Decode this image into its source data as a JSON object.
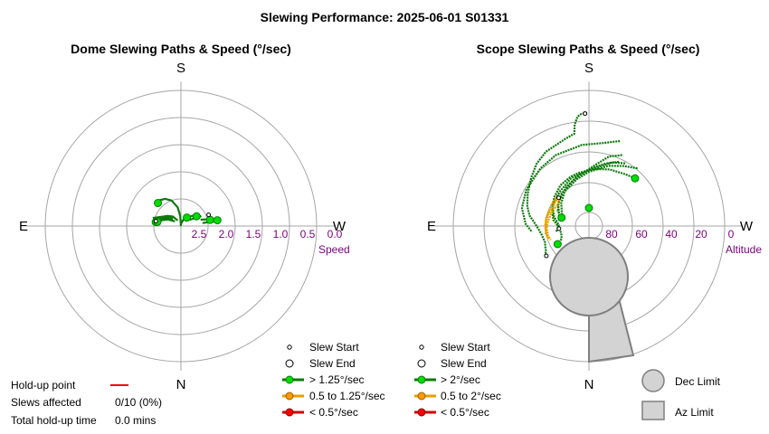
{
  "title": "Slewing Performance: 2025-06-01 S01331",
  "colors": {
    "grid": "#a6a6a6",
    "axis_label": "#7a007a",
    "fast": "#0a7a0a",
    "fast_marker": "#00dd00",
    "medium": "#e8a000",
    "medium_marker": "#ff9900",
    "slow": "#cc0000",
    "limit_fill": "#d3d3d3",
    "limit_stroke": "#7f7f7f",
    "holdup": "#ff0000"
  },
  "chart_data": [
    {
      "type": "scatter",
      "title": "Dome Slewing Paths & Speed (°/sec)",
      "radial_axis": {
        "label": "Speed",
        "tick_labels": [
          "2.5",
          "2.0",
          "1.5",
          "1.0",
          "0.5",
          "0.0"
        ],
        "range": [
          2.5,
          0.0
        ]
      },
      "compass": {
        "south": "S",
        "north": "N",
        "east": "E",
        "west": "W"
      },
      "grid": true,
      "legend": {
        "placement": "bottom-right",
        "entries": [
          "Slew Start",
          "Slew End",
          "> 1.25°/sec",
          "0.5 to 1.25°/sec",
          "< 0.5°/sec"
        ]
      },
      "series": [
        {
          "name": "> 1.25°/sec",
          "paths": [
            [
              [
                179,
                2.5
              ],
              [
                176,
                2.35
              ],
              [
                175,
                2.3
              ],
              [
                170,
                2.15
              ],
              [
                160,
                2.0
              ],
              [
                150,
                1.92
              ],
              [
                140,
                1.88
              ],
              [
                135,
                1.9
              ]
            ],
            [
              [
                150,
                2.38
              ],
              [
                140,
                2.28
              ],
              [
                125,
                2.18
              ],
              [
                112,
                2.08
              ],
              [
                104,
                2.04
              ]
            ],
            [
              [
                132,
                2.3
              ],
              [
                120,
                2.2
              ],
              [
                110,
                2.12
              ],
              [
                101,
                2.03
              ]
            ],
            [
              [
                128,
                2.36
              ],
              [
                116,
                2.22
              ],
              [
                106,
                2.12
              ],
              [
                100,
                2.06
              ]
            ],
            [
              [
                142,
                2.28
              ],
              [
                128,
                2.2
              ],
              [
                115,
                2.1
              ],
              [
                106,
                1.96
              ]
            ],
            [
              [
                118,
                2.24
              ],
              [
                108,
                2.14
              ],
              [
                102,
                2.06
              ]
            ],
            [
              [
                111,
                2.14
              ],
              [
                104,
                2.08
              ],
              [
                99,
                2.03
              ]
            ],
            [
              [
                170,
                2.48
              ],
              [
                180,
                2.46
              ],
              [
                200,
                2.38
              ],
              [
                215,
                2.31
              ]
            ],
            [
              [
                210,
                2.38
              ],
              [
                220,
                2.28
              ],
              [
                230,
                2.2
              ],
              [
                238,
                2.16
              ]
            ],
            [
              [
                235,
                2.3
              ],
              [
                240,
                2.2
              ],
              [
                244,
                2.08
              ]
            ],
            [
              [
                252,
                2.12
              ],
              [
                256,
                1.98
              ],
              [
                258,
                1.95
              ]
            ],
            [
              [
                262,
                2.1
              ],
              [
                262,
                1.9
              ],
              [
                261,
                1.82
              ]
            ],
            [
              [
                248,
                1.95
              ],
              [
                256,
                1.93
              ],
              [
                262,
                1.9
              ]
            ]
          ],
          "start_points": [
            [
              248,
              1.95
            ],
            [
              101,
              2.03
            ]
          ],
          "end_points": [
            [
              135,
              1.9
            ],
            [
              215,
              2.31
            ],
            [
              238,
              2.16
            ],
            [
              258,
              1.95
            ],
            [
              261,
              1.82
            ],
            [
              99,
              2.03
            ],
            [
              100,
              2.06
            ]
          ]
        }
      ]
    },
    {
      "type": "scatter",
      "title": "Scope Slewing Paths & Speed (°/sec)",
      "radial_axis": {
        "label": "Altitude",
        "tick_labels": [
          "80",
          "60",
          "40",
          "20",
          "0"
        ],
        "range": [
          90,
          0
        ]
      },
      "compass": {
        "south": "S",
        "north": "N",
        "east": "E",
        "west": "W"
      },
      "grid": true,
      "legend": {
        "placement": "bottom-right",
        "entries": [
          "Slew Start",
          "Slew End",
          "> 2°/sec",
          "0.5 to 2°/sec",
          "< 0.5°/sec"
        ]
      },
      "limit_legend": [
        "Dec Limit",
        "Az Limit"
      ],
      "series": [
        {
          "name": "> 2°/sec",
          "paths": [
            [
              [
                179,
                15.0
              ],
              [
                176,
                15.5
              ],
              [
                174,
                17.0
              ],
              [
                172,
                22.0
              ],
              [
                171,
                28.0
              ],
              [
                165,
                30.0
              ],
              [
                150,
                33.0
              ],
              [
                140,
                36.0
              ],
              [
                130,
                40.0
              ],
              [
                118,
                44.0
              ],
              [
                108,
                47.0
              ],
              [
                100,
                50.0
              ],
              [
                95,
                53.0
              ],
              [
                88,
                56.0
              ],
              [
                80,
                58.0
              ],
              [
                70,
                59.0
              ],
              [
                65,
                58.0
              ],
              [
                60,
                57.0
              ],
              [
                56,
                55.0
              ]
            ],
            [
              [
                224,
                46.0
              ],
              [
                215,
                48.0
              ],
              [
                200,
                50.0
              ],
              [
                185,
                52.0
              ],
              [
                170,
                54.0
              ],
              [
                160,
                55.0
              ],
              [
                145,
                57.0
              ],
              [
                130,
                60.0
              ],
              [
                115,
                63.0
              ],
              [
                100,
                66.0
              ],
              [
                88,
                70.0
              ],
              [
                75,
                71.0
              ],
              [
                65,
                70.0
              ],
              [
                60,
                66.0
              ]
            ],
            [
              [
                210,
                42.0
              ],
              [
                200,
                45.0
              ],
              [
                190,
                50.0
              ],
              [
                180,
                53.0
              ],
              [
                160,
                56.0
              ],
              [
                140,
                60.0
              ],
              [
                120,
                62.0
              ],
              [
                105,
                66.0
              ],
              [
                92,
                70.0
              ],
              [
                80,
                68.0
              ]
            ],
            [
              [
                205,
                38.0
              ],
              [
                196,
                42.0
              ],
              [
                188,
                48.0
              ],
              [
                178,
                53.0
              ],
              [
                160,
                58.0
              ],
              [
                140,
                62.0
              ],
              [
                125,
                65.0
              ],
              [
                115,
                68.0
              ],
              [
                100,
                70.0
              ]
            ],
            [
              [
                220,
                40.0
              ],
              [
                210,
                44.0
              ],
              [
                198,
                48.0
              ],
              [
                180,
                54.0
              ],
              [
                165,
                58.0
              ],
              [
                145,
                62.0
              ],
              [
                130,
                66.0
              ],
              [
                110,
                71.0
              ]
            ],
            [
              [
                205,
                43.0
              ],
              [
                195,
                47.0
              ],
              [
                185,
                51.0
              ],
              [
                170,
                55.0
              ],
              [
                150,
                60.0
              ],
              [
                130,
                64.0
              ],
              [
                116,
                67.0
              ],
              [
                107,
                71.0
              ]
            ],
            [
              [
                200,
                30.0
              ],
              [
                190,
                34.0
              ],
              [
                175,
                36.0
              ],
              [
                155,
                38.0
              ],
              [
                140,
                40.0
              ],
              [
                120,
                42.0
              ],
              [
                105,
                44.0
              ],
              [
                92,
                48.0
              ],
              [
                84,
                52.0
              ]
            ]
          ],
          "start_points": [
            [
              178,
              15.3
            ],
            [
              55,
              55.5
            ],
            [
              85,
              70.0
            ]
          ],
          "end_points": [
            [
              224,
              46.0
            ],
            [
              60,
              66.0
            ],
            [
              107,
              71.0
            ],
            [
              180,
              78.0
            ]
          ]
        },
        {
          "name": "0.5 to 2°/sec",
          "paths": [
            [
              [
                135,
                63.0
              ],
              [
                125,
                65.0
              ],
              [
                115,
                64.0
              ],
              [
                100,
                63.0
              ],
              [
                90,
                62.0
              ],
              [
                78,
                62.0
              ],
              [
                70,
                63.0
              ]
            ],
            [
              [
                133,
                62.0
              ],
              [
                120,
                63.0
              ],
              [
                105,
                62.0
              ],
              [
                92,
                61.0
              ],
              [
                80,
                61.0
              ],
              [
                72,
                62.0
              ]
            ],
            [
              [
                131,
                61.0
              ],
              [
                118,
                61.5
              ],
              [
                100,
                61.0
              ],
              [
                85,
                61.0
              ],
              [
                74,
                61.5
              ]
            ]
          ],
          "start_points": [
            [
              133,
              62.5
            ]
          ],
          "end_points": []
        }
      ]
    }
  ],
  "holdup": {
    "point_label": "Hold-up point",
    "slews_label": "Slews affected",
    "slews_value": "0/10 (0%)",
    "time_label": "Total hold-up time",
    "time_value": "0.0 mins"
  }
}
